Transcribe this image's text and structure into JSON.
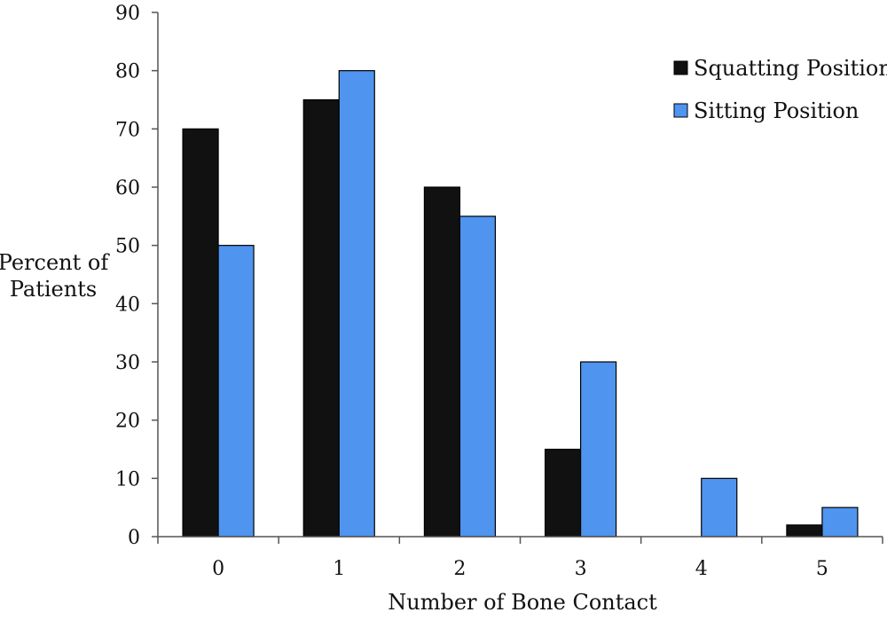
{
  "chart_data": {
    "type": "bar",
    "title": "",
    "xlabel": "Number of Bone Contact",
    "ylabel_lines": [
      "Percent of",
      "Patients"
    ],
    "ylim": [
      0,
      90
    ],
    "yticks": [
      0,
      10,
      20,
      30,
      40,
      50,
      60,
      70,
      80,
      90
    ],
    "categories": [
      "0",
      "1",
      "2",
      "3",
      "4",
      "5"
    ],
    "series": [
      {
        "name": "Squatting Position",
        "color": "#111111",
        "values": [
          70,
          75,
          60,
          15,
          0,
          2
        ]
      },
      {
        "name": "Sitting Position",
        "color": "#4f94ef",
        "values": [
          50,
          80,
          55,
          30,
          10,
          5
        ]
      }
    ],
    "legend_position": "top-right",
    "grid": false
  }
}
